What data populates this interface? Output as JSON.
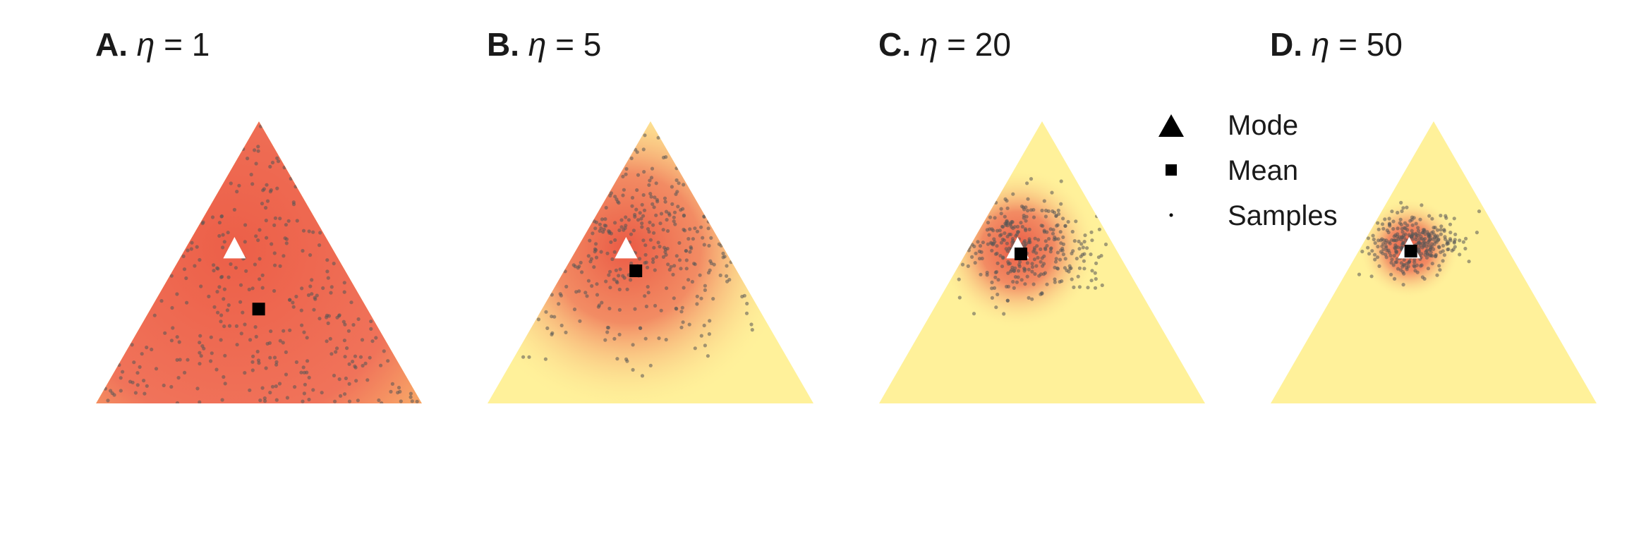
{
  "chart_data": [
    {
      "type": "scatter",
      "panel": "A.",
      "param": "η",
      "value_label": "= 1",
      "mode": [
        0.3,
        0.15,
        0.55
      ],
      "mean": [
        0.333,
        0.333,
        0.333
      ],
      "samples_n": 320,
      "density_colors": [
        "#fff19a",
        "#ef6b52"
      ]
    },
    {
      "type": "scatter",
      "panel": "B.",
      "param": "η",
      "value_label": "= 5",
      "mode": [
        0.3,
        0.15,
        0.55
      ],
      "mean": [
        0.31,
        0.22,
        0.47
      ],
      "samples_n": 320,
      "density_colors": [
        "#fff19a",
        "#ef6b52"
      ]
    },
    {
      "type": "scatter",
      "panel": "C.",
      "param": "η",
      "value_label": "= 20",
      "mode": [
        0.3,
        0.15,
        0.55
      ],
      "mean": [
        0.3,
        0.17,
        0.53
      ],
      "samples_n": 320,
      "density_colors": [
        "#fff19a",
        "#ef6b52"
      ]
    },
    {
      "type": "scatter",
      "panel": "D.",
      "param": "η",
      "value_label": "= 50",
      "mode": [
        0.3,
        0.15,
        0.55
      ],
      "mean": [
        0.3,
        0.16,
        0.54
      ],
      "samples_n": 320,
      "density_colors": [
        "#fff19a",
        "#ef6b52"
      ]
    }
  ],
  "legend": {
    "mode": "Mode",
    "mean": "Mean",
    "samples": "Samples"
  },
  "colors": {
    "background": "#fff19a",
    "density_high": "#ef6b52",
    "sample": "#555555",
    "mean": "#000000",
    "mode": "#ffffff"
  },
  "concentrations": [
    1,
    5,
    20,
    50
  ]
}
